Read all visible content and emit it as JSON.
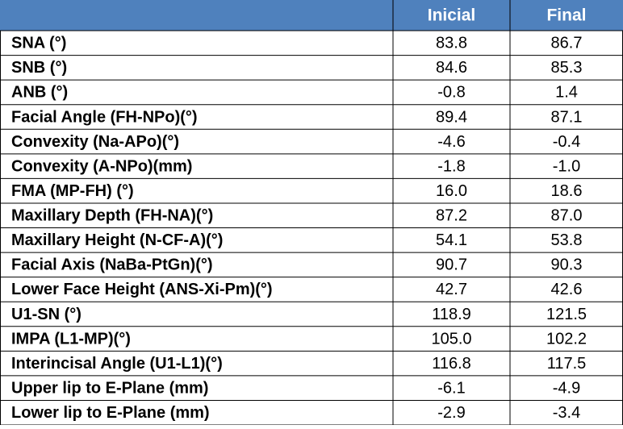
{
  "table": {
    "columns": [
      "Inicial",
      "Final"
    ],
    "rows": [
      [
        "SNA (°)",
        "83.8",
        "86.7"
      ],
      [
        "SNB (°)",
        "84.6",
        "85.3"
      ],
      [
        "ANB (°)",
        "-0.8",
        "1.4"
      ],
      [
        "Facial Angle  (FH-NPo)(°)",
        "89.4",
        "87.1"
      ],
      [
        "Convexity (Na-APo)(°)",
        "-4.6",
        "-0.4"
      ],
      [
        "Convexity (A-NPo)(mm)",
        "-1.8",
        "-1.0"
      ],
      [
        "FMA (MP-FH) (°)",
        "16.0",
        "18.6"
      ],
      [
        "Maxillary Depth (FH-NA)(°)",
        "87.2",
        "87.0"
      ],
      [
        "Maxillary Height (N-CF-A)(°)",
        "54.1",
        "53.8"
      ],
      [
        "Facial Axis (NaBa-PtGn)(°)",
        "90.7",
        "90.3"
      ],
      [
        "Lower Face Height (ANS-Xi-Pm)(°)",
        "42.7",
        "42.6"
      ],
      [
        "U1-SN (°)",
        "118.9",
        "121.5"
      ],
      [
        "IMPA (L1-MP)(°)",
        "105.0",
        "102.2"
      ],
      [
        "Interincisal Angle (U1-L1)(°)",
        "116.8",
        "117.5"
      ],
      [
        "Upper lip to E-Plane (mm)",
        "-6.1",
        "-4.9"
      ],
      [
        "Lower lip to E-Plane (mm)",
        "-2.9",
        "-3.4"
      ]
    ]
  }
}
